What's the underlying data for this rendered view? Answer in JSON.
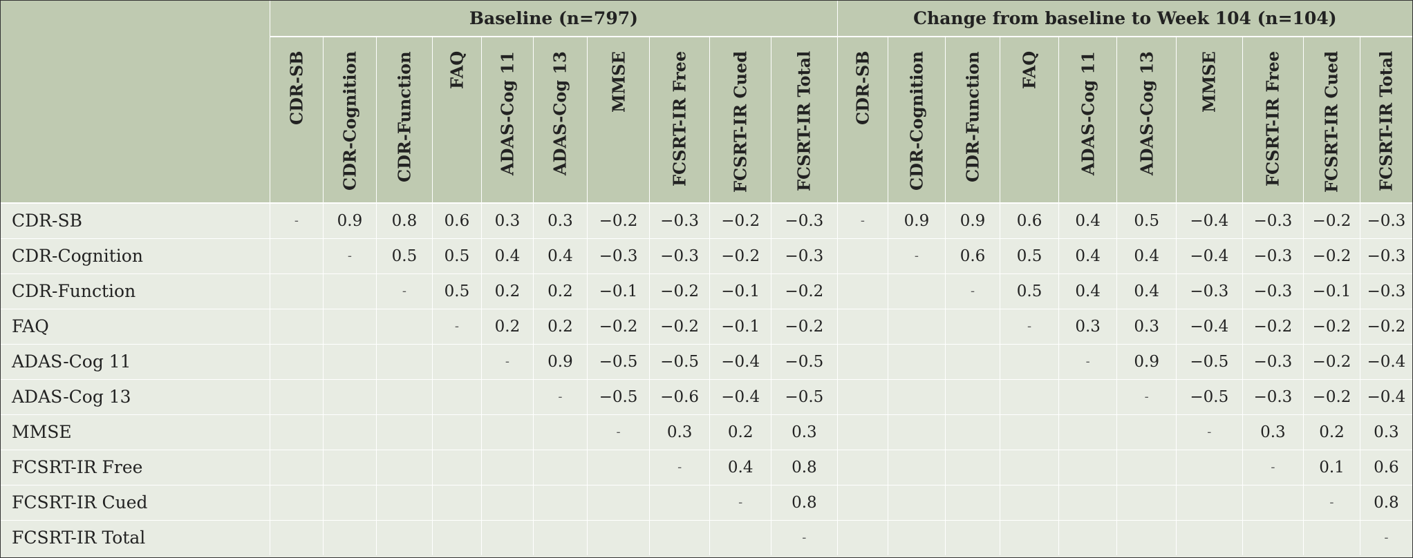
{
  "groups": {
    "baseline": "Baseline (n=797)",
    "change": "Change from baseline to Week 104 (n=104)"
  },
  "columns": [
    "CDR-SB",
    "CDR-Cognition",
    "CDR-Function",
    "FAQ",
    "ADAS-Cog 11",
    "ADAS-Cog 13",
    "MMSE",
    "FCSRT-IR Free",
    "FCSRT-IR Cued",
    "FCSRT-IR Total"
  ],
  "rows": [
    {
      "label": "CDR-SB",
      "baseline": [
        "-",
        "0.9",
        "0.8",
        "0.6",
        "0.3",
        "0.3",
        "−0.2",
        "−0.3",
        "−0.2",
        "−0.3"
      ],
      "change": [
        "-",
        "0.9",
        "0.9",
        "0.6",
        "0.4",
        "0.5",
        "−0.4",
        "−0.3",
        "−0.2",
        "−0.3"
      ]
    },
    {
      "label": "CDR-Cognition",
      "baseline": [
        "",
        "-",
        "0.5",
        "0.5",
        "0.4",
        "0.4",
        "−0.3",
        "−0.3",
        "−0.2",
        "−0.3"
      ],
      "change": [
        "",
        "-",
        "0.6",
        "0.5",
        "0.4",
        "0.4",
        "−0.4",
        "−0.3",
        "−0.2",
        "−0.3"
      ]
    },
    {
      "label": "CDR-Function",
      "baseline": [
        "",
        "",
        "-",
        "0.5",
        "0.2",
        "0.2",
        "−0.1",
        "−0.2",
        "−0.1",
        "−0.2"
      ],
      "change": [
        "",
        "",
        "-",
        "0.5",
        "0.4",
        "0.4",
        "−0.3",
        "−0.3",
        "−0.1",
        "−0.3"
      ]
    },
    {
      "label": "FAQ",
      "baseline": [
        "",
        "",
        "",
        "-",
        "0.2",
        "0.2",
        "−0.2",
        "−0.2",
        "−0.1",
        "−0.2"
      ],
      "change": [
        "",
        "",
        "",
        "-",
        "0.3",
        "0.3",
        "−0.4",
        "−0.2",
        "−0.2",
        "−0.2"
      ]
    },
    {
      "label": "ADAS-Cog 11",
      "baseline": [
        "",
        "",
        "",
        "",
        "-",
        "0.9",
        "−0.5",
        "−0.5",
        "−0.4",
        "−0.5"
      ],
      "change": [
        "",
        "",
        "",
        "",
        "-",
        "0.9",
        "−0.5",
        "−0.3",
        "−0.2",
        "−0.4"
      ]
    },
    {
      "label": "ADAS-Cog 13",
      "baseline": [
        "",
        "",
        "",
        "",
        "",
        "-",
        "−0.5",
        "−0.6",
        "−0.4",
        "−0.5"
      ],
      "change": [
        "",
        "",
        "",
        "",
        "",
        "-",
        "−0.5",
        "−0.3",
        "−0.2",
        "−0.4"
      ]
    },
    {
      "label": "MMSE",
      "baseline": [
        "",
        "",
        "",
        "",
        "",
        "",
        "-",
        "0.3",
        "0.2",
        "0.3"
      ],
      "change": [
        "",
        "",
        "",
        "",
        "",
        "",
        "-",
        "0.3",
        "0.2",
        "0.3"
      ]
    },
    {
      "label": "FCSRT-IR Free",
      "baseline": [
        "",
        "",
        "",
        "",
        "",
        "",
        "",
        "-",
        "0.4",
        "0.8"
      ],
      "change": [
        "",
        "",
        "",
        "",
        "",
        "",
        "",
        "-",
        "0.1",
        "0.6"
      ]
    },
    {
      "label": "FCSRT-IR Cued",
      "baseline": [
        "",
        "",
        "",
        "",
        "",
        "",
        "",
        "",
        "-",
        "0.8"
      ],
      "change": [
        "",
        "",
        "",
        "",
        "",
        "",
        "",
        "",
        "-",
        "0.8"
      ]
    },
    {
      "label": "FCSRT-IR Total",
      "baseline": [
        "",
        "",
        "",
        "",
        "",
        "",
        "",
        "",
        "",
        "-"
      ],
      "change": [
        "",
        "",
        "",
        "",
        "",
        "",
        "",
        "",
        "",
        "-"
      ]
    }
  ]
}
